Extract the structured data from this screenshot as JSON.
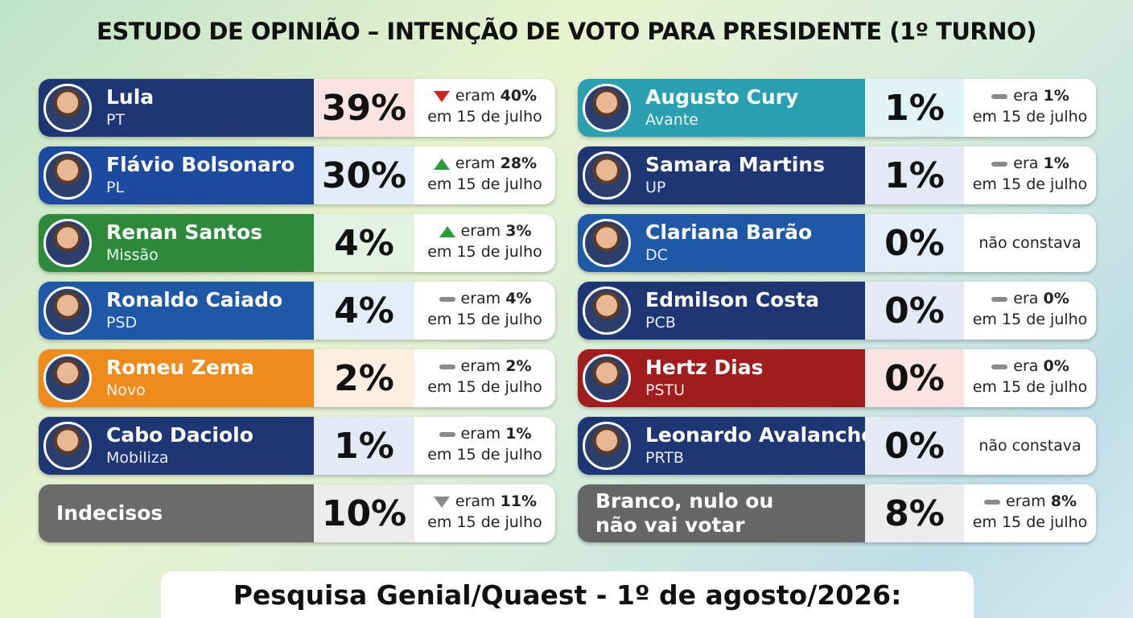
{
  "header": {
    "title": "ESTUDO DE OPINIÃO – INTENÇÃO DE VOTO PARA PRESIDENTE (1º TURNO)"
  },
  "columns": [
    {
      "rows": [
        {
          "name": "Lula",
          "party": "PT",
          "percent": "39%",
          "color": "#1f3675",
          "pct_bg": "#fbe3e3",
          "avatar": true,
          "change": {
            "trend": "down",
            "icon_color": "#c62828",
            "label": "eram",
            "value": "40%",
            "since": "em 15 de julho"
          }
        },
        {
          "name": "Flávio Bolsonaro",
          "party": "PL",
          "percent": "30%",
          "color": "#1c4a9e",
          "pct_bg": "#e3ecf8",
          "avatar": true,
          "change": {
            "trend": "up",
            "icon_color": "#2e9a3c",
            "label": "eram",
            "value": "28%",
            "since": "em 15 de julho"
          }
        },
        {
          "name": "Renan Santos",
          "party": "Missão",
          "percent": "4%",
          "color": "#2d8a3c",
          "pct_bg": "#e3f3e3",
          "avatar": true,
          "change": {
            "trend": "up",
            "icon_color": "#2e9a3c",
            "label": "eram",
            "value": "3%",
            "since": "em 15 de julho"
          }
        },
        {
          "name": "Ronaldo Caiado",
          "party": "PSD",
          "percent": "4%",
          "color": "#1f58a6",
          "pct_bg": "#e3eef8",
          "avatar": true,
          "change": {
            "trend": "same",
            "icon_color": "#8a8a8a",
            "label": "eram",
            "value": "4%",
            "since": "em 15 de julho"
          }
        },
        {
          "name": "Romeu Zema",
          "party": "Novo",
          "percent": "2%",
          "color": "#ef8a1d",
          "pct_bg": "#fdeee0",
          "avatar": true,
          "change": {
            "trend": "same",
            "icon_color": "#8a8a8a",
            "label": "eram",
            "value": "2%",
            "since": "em 15 de julho"
          }
        },
        {
          "name": "Cabo Daciolo",
          "party": "Mobiliza",
          "percent": "1%",
          "color": "#1f3675",
          "pct_bg": "#e5e9f5",
          "avatar": true,
          "change": {
            "trend": "same",
            "icon_color": "#8a8a8a",
            "label": "eram",
            "value": "1%",
            "since": "em 15 de julho"
          }
        },
        {
          "name": "Indecisos",
          "percent": "10%",
          "color": "#6b6b6b",
          "pct_bg": "#ececec",
          "avatar": false,
          "change": {
            "trend": "down",
            "icon_color": "#8a8a8a",
            "label": "eram",
            "value": "11%",
            "since": "em 15 de julho"
          }
        }
      ]
    },
    {
      "rows": [
        {
          "name": "Augusto Cury",
          "party": "Avante",
          "percent": "1%",
          "color": "#2a9fb0",
          "pct_bg": "#e2f3f5",
          "avatar": true,
          "change": {
            "trend": "same",
            "icon_color": "#8a8a8a",
            "label": "era",
            "value": "1%",
            "since": "em 15 de julho"
          }
        },
        {
          "name": "Samara Martins",
          "party": "UP",
          "percent": "1%",
          "color": "#1f3675",
          "pct_bg": "#e5e9f5",
          "avatar": true,
          "change": {
            "trend": "same",
            "icon_color": "#8a8a8a",
            "label": "era",
            "value": "1%",
            "since": "em 15 de julho"
          }
        },
        {
          "name": "Clariana Barão",
          "party": "DC",
          "percent": "0%",
          "color": "#1f58a6",
          "pct_bg": "#e3eef8",
          "avatar": true,
          "change": {
            "note": "não constava"
          }
        },
        {
          "name": "Edmilson Costa",
          "party": "PCB",
          "percent": "0%",
          "color": "#1f3675",
          "pct_bg": "#e5e9f5",
          "avatar": true,
          "change": {
            "trend": "same",
            "icon_color": "#8a8a8a",
            "label": "era",
            "value": "0%",
            "since": "em 15 de julho"
          }
        },
        {
          "name": "Hertz Dias",
          "party": "PSTU",
          "percent": "0%",
          "color": "#a11d1d",
          "pct_bg": "#fbe3e3",
          "avatar": true,
          "change": {
            "trend": "same",
            "icon_color": "#8a8a8a",
            "label": "era",
            "value": "0%",
            "since": "em 15 de julho"
          }
        },
        {
          "name": "Leonardo Avalanche",
          "party": "PRTB",
          "percent": "0%",
          "color": "#1f3675",
          "pct_bg": "#e5e9f5",
          "avatar": true,
          "change": {
            "note": "não constava"
          }
        },
        {
          "name": "Branco, nulo ou não vai votar",
          "percent": "8%",
          "color": "#666666",
          "pct_bg": "#ececec",
          "avatar": false,
          "change": {
            "trend": "same",
            "icon_color": "#8a8a8a",
            "label": "eram",
            "value": "8%",
            "since": "em 15 de julho"
          }
        }
      ]
    }
  ],
  "footer": {
    "text": "Pesquisa Genial/Quaest - 1º de agosto/2026:"
  }
}
